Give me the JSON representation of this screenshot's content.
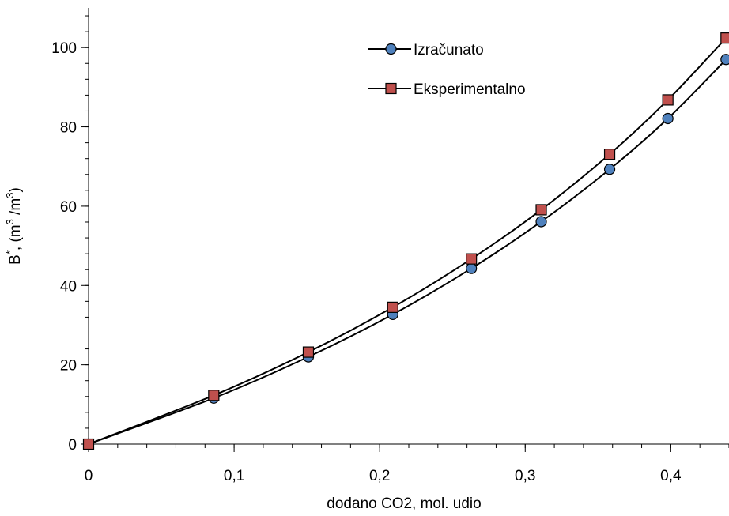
{
  "chart_data": {
    "type": "line",
    "title": "",
    "xlabel": "dodano CO2, mol. udio",
    "ylabel": {
      "main": "B",
      "sup1": "*",
      "unit_open": ", (m",
      "sup2": "3",
      "unit_mid": " /m",
      "sup3": "3",
      "unit_close": ")"
    },
    "xlim": [
      0,
      0.44
    ],
    "ylim": [
      0,
      110
    ],
    "x_ticks": [
      0,
      0.1,
      0.2,
      0.3,
      0.4
    ],
    "x_tick_labels": [
      "0",
      "0,1",
      "0,2",
      "0,3",
      "0,4"
    ],
    "x_minor_step": 0.02,
    "y_ticks": [
      0,
      20,
      40,
      60,
      80,
      100
    ],
    "y_tick_labels": [
      "0",
      "20",
      "40",
      "60",
      "80",
      "100"
    ],
    "y_minor_step": 4,
    "grid": false,
    "legend_position": "top-center",
    "series": [
      {
        "name": "Izračunato",
        "marker": "circle",
        "color": "#4f81bd",
        "x": [
          0,
          0.086,
          0.151,
          0.209,
          0.263,
          0.311,
          0.358,
          0.398,
          0.438
        ],
        "y": [
          0,
          11.6,
          22,
          32.7,
          44.3,
          56.1,
          69.3,
          82.1,
          97
        ]
      },
      {
        "name": "Eksperimentalno",
        "marker": "square",
        "color": "#c0504d",
        "x": [
          0,
          0.086,
          0.151,
          0.209,
          0.263,
          0.311,
          0.358,
          0.398,
          0.438
        ],
        "y": [
          0,
          12.3,
          23.2,
          34.5,
          46.7,
          59.1,
          73.1,
          86.8,
          102.4
        ]
      }
    ]
  }
}
